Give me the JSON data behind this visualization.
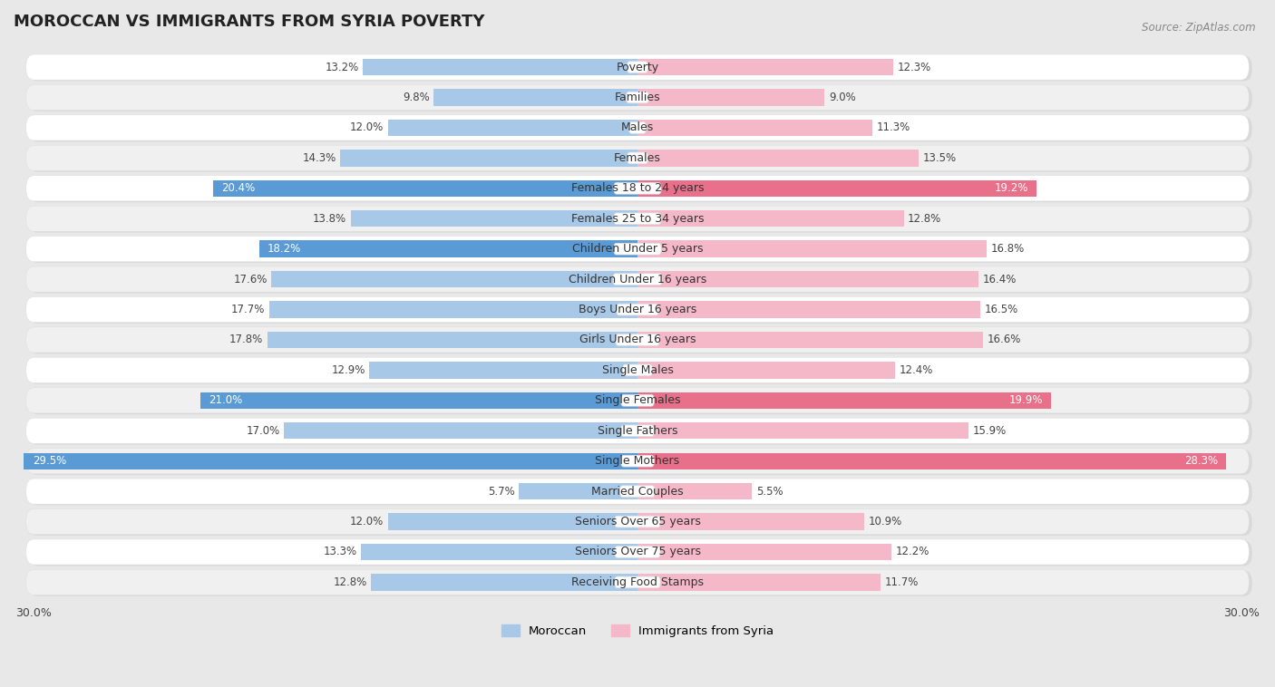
{
  "title": "MOROCCAN VS IMMIGRANTS FROM SYRIA POVERTY",
  "source": "Source: ZipAtlas.com",
  "categories": [
    "Poverty",
    "Families",
    "Males",
    "Females",
    "Females 18 to 24 years",
    "Females 25 to 34 years",
    "Children Under 5 years",
    "Children Under 16 years",
    "Boys Under 16 years",
    "Girls Under 16 years",
    "Single Males",
    "Single Females",
    "Single Fathers",
    "Single Mothers",
    "Married Couples",
    "Seniors Over 65 years",
    "Seniors Over 75 years",
    "Receiving Food Stamps"
  ],
  "moroccan": [
    13.2,
    9.8,
    12.0,
    14.3,
    20.4,
    13.8,
    18.2,
    17.6,
    17.7,
    17.8,
    12.9,
    21.0,
    17.0,
    29.5,
    5.7,
    12.0,
    13.3,
    12.8
  ],
  "syria": [
    12.3,
    9.0,
    11.3,
    13.5,
    19.2,
    12.8,
    16.8,
    16.4,
    16.5,
    16.6,
    12.4,
    19.9,
    15.9,
    28.3,
    5.5,
    10.9,
    12.2,
    11.7
  ],
  "moroccan_color_default": "#a8c8e8",
  "moroccan_color_highlight": "#5b9bd5",
  "syria_color_default": "#f4b8c8",
  "syria_color_highlight": "#e8708a",
  "highlight_threshold": 18.0,
  "xlim": 30.0,
  "background_color": "#e8e8e8",
  "row_bg_even": "#ffffff",
  "row_bg_odd": "#f0f0f0",
  "title_fontsize": 13,
  "label_fontsize": 9,
  "tick_fontsize": 9,
  "bar_height": 0.55,
  "legend_moroccan": "Moroccan",
  "legend_syria": "Immigrants from Syria"
}
